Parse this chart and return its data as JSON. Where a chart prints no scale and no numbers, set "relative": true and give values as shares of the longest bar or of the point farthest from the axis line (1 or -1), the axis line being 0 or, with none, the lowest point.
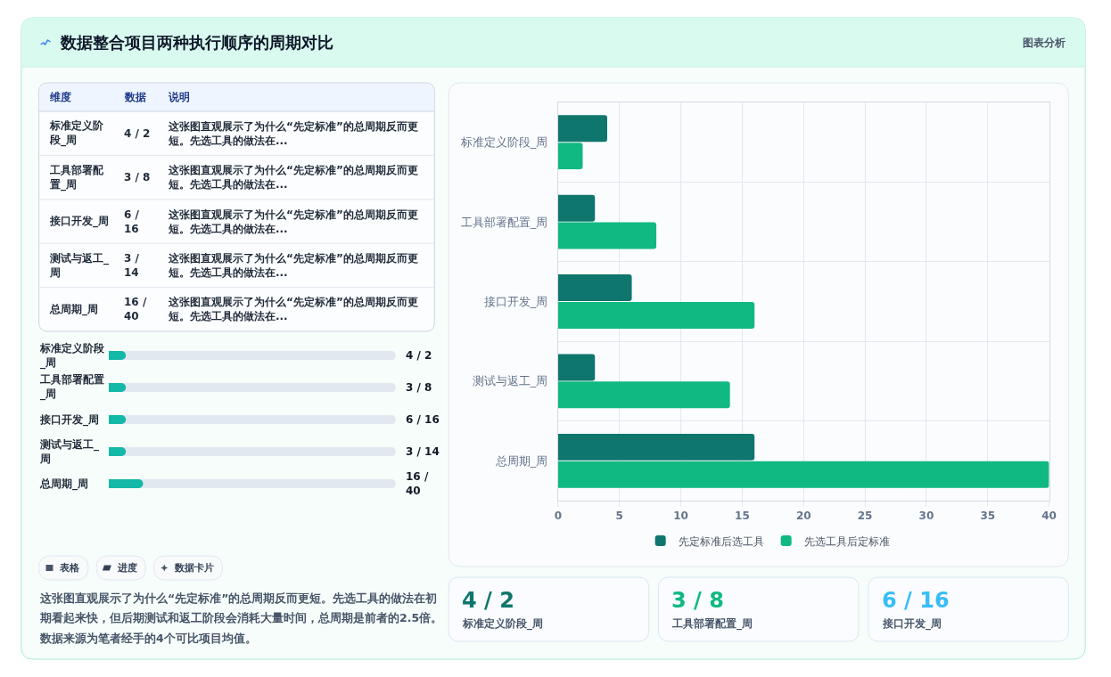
{
  "chart_data": [
    {
      "type": "other",
      "title": "数据整合项目两种执行顺序的周期对比",
      "annotations": [
        "图表分析"
      ]
    },
    {
      "type": "other",
      "categories": [
        "维度",
        "数据",
        "说明"
      ],
      "annotations": [
        "标准定义阶段_周",
        "4 / 2",
        "这张图直观展示了为什么“先定标准”的总周期反而更短。先选工具的做法在...",
        "工具部署配置_周",
        "3 / 8",
        "这张图直观展示了为什么“先定标准”的总周期反而更短。先选工具的做法在...",
        "接口开发_周",
        "6 / 16",
        "这张图直观展示了为什么“先定标准”的总周期反而更短。先选工具的做法在...",
        "测试与返工_周",
        "3 / 14",
        "这张图直观展示了为什么“先定标准”的总周期反而更短。先选工具的做法在...",
        "总周期_周",
        "16 / 40",
        "这张图直观展示了为什么“先定标准”的总周期反而更短。先选工具的做法在..."
      ]
    },
    {
      "type": "bar",
      "orientation": "horizontal",
      "relative": true,
      "categories": [
        "标准定义阶段_周",
        "工具部署配置_周",
        "接口开发_周",
        "测试与返工_周",
        "总周期_周"
      ],
      "values": [
        0.5,
        0.5,
        0.5,
        0.5,
        1
      ],
      "color": "#14b8a6",
      "annotations": [
        "4 / 2",
        "3 / 8",
        "6 / 16",
        "3 / 14",
        "16 / 40"
      ]
    },
    {
      "type": "other",
      "annotations": [
        "表格",
        "进度",
        "数据卡片",
        "这张图直观展示了为什么“先定标准”的总周期反而更短。先选工具的做法在初期看起来快，但后期测试和返工阶段会消耗大量时间，总周期是前者的2.5倍。数据来源为笔者经手的4个可比项目均值。"
      ]
    },
    {
      "type": "bar",
      "orientation": "horizontal",
      "categories": [
        "标准定义阶段_周",
        "工具部署配置_周",
        "接口开发_周",
        "测试与返工_周",
        "总周期_周"
      ],
      "series": [
        {
          "name": "先定标准后选工具",
          "color": "#0f766e",
          "values": [
            4,
            3,
            6,
            3,
            16
          ]
        },
        {
          "name": "先选工具后定标准",
          "color": "#10b981",
          "values": [
            2,
            8,
            16,
            14,
            40
          ]
        }
      ],
      "xlim": [
        0,
        40
      ],
      "xticks": [
        0,
        5,
        10,
        15,
        20,
        25,
        30,
        35,
        40
      ],
      "grid": true,
      "legend": "bottom"
    },
    {
      "type": "other",
      "categories": [
        "标准定义阶段_周",
        "工具部署配置_周",
        "接口开发_周"
      ],
      "value_labels": [
        "4 / 2",
        "3 / 8",
        "6 / 16"
      ]
    }
  ]
}
